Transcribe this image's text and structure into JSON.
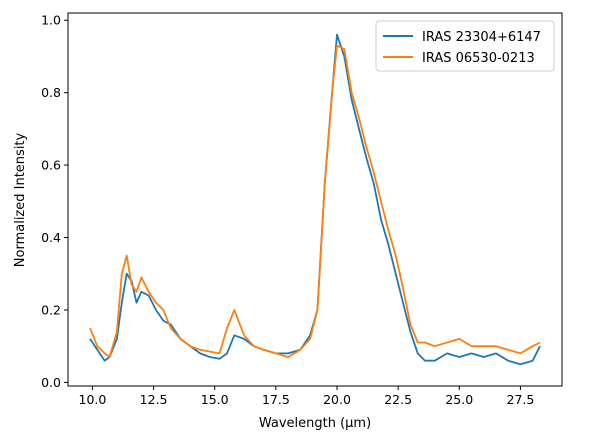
{
  "chart_data": {
    "type": "line",
    "title": "",
    "xlabel": "Wavelength (μm)",
    "ylabel": "Normalized Intensity",
    "xlim": [
      9.0,
      29.2
    ],
    "ylim": [
      -0.01,
      1.02
    ],
    "xticks": [
      "10.0",
      "12.5",
      "15.0",
      "17.5",
      "20.0",
      "22.5",
      "25.0",
      "27.5"
    ],
    "yticks": [
      "0.0",
      "0.2",
      "0.4",
      "0.6",
      "0.8",
      "1.0"
    ],
    "grid": false,
    "legend_position": "top-right",
    "series": [
      {
        "name": "IRAS 23304+6147",
        "color": "#1f77b4",
        "x": [
          9.9,
          10.2,
          10.5,
          10.7,
          11.0,
          11.2,
          11.4,
          11.6,
          11.8,
          12.0,
          12.3,
          12.6,
          12.9,
          13.2,
          13.6,
          14.0,
          14.4,
          14.8,
          15.2,
          15.5,
          15.8,
          16.2,
          16.6,
          17.0,
          17.5,
          18.0,
          18.5,
          18.9,
          19.2,
          19.5,
          19.8,
          20.0,
          20.3,
          20.6,
          20.9,
          21.2,
          21.5,
          21.8,
          22.1,
          22.4,
          22.7,
          23.0,
          23.3,
          23.6,
          24.0,
          24.5,
          25.0,
          25.5,
          26.0,
          26.5,
          27.0,
          27.5,
          28.0,
          28.3
        ],
        "values": [
          0.12,
          0.09,
          0.06,
          0.07,
          0.12,
          0.22,
          0.3,
          0.28,
          0.22,
          0.25,
          0.24,
          0.2,
          0.17,
          0.16,
          0.12,
          0.1,
          0.08,
          0.07,
          0.065,
          0.08,
          0.13,
          0.12,
          0.1,
          0.09,
          0.08,
          0.08,
          0.09,
          0.13,
          0.2,
          0.55,
          0.8,
          0.96,
          0.9,
          0.78,
          0.7,
          0.62,
          0.55,
          0.45,
          0.38,
          0.3,
          0.22,
          0.14,
          0.08,
          0.06,
          0.06,
          0.08,
          0.07,
          0.08,
          0.07,
          0.08,
          0.06,
          0.05,
          0.06,
          0.1
        ]
      },
      {
        "name": "IRAS 06530-0213",
        "color": "#ff7f0e",
        "x": [
          9.9,
          10.2,
          10.5,
          10.7,
          11.0,
          11.2,
          11.4,
          11.6,
          11.8,
          12.0,
          12.3,
          12.6,
          12.9,
          13.2,
          13.6,
          14.0,
          14.4,
          14.8,
          15.2,
          15.5,
          15.8,
          16.2,
          16.6,
          17.0,
          17.5,
          18.0,
          18.5,
          18.9,
          19.2,
          19.5,
          19.8,
          20.0,
          20.3,
          20.6,
          20.9,
          21.2,
          21.5,
          21.8,
          22.1,
          22.4,
          22.7,
          23.0,
          23.3,
          23.6,
          24.0,
          24.5,
          25.0,
          25.5,
          26.0,
          26.5,
          27.0,
          27.5,
          28.0,
          28.3
        ],
        "values": [
          0.15,
          0.1,
          0.08,
          0.07,
          0.14,
          0.3,
          0.35,
          0.27,
          0.25,
          0.29,
          0.25,
          0.22,
          0.2,
          0.15,
          0.12,
          0.1,
          0.09,
          0.085,
          0.08,
          0.15,
          0.2,
          0.13,
          0.1,
          0.09,
          0.08,
          0.07,
          0.09,
          0.12,
          0.2,
          0.55,
          0.8,
          0.93,
          0.92,
          0.8,
          0.73,
          0.65,
          0.58,
          0.5,
          0.42,
          0.35,
          0.26,
          0.16,
          0.11,
          0.11,
          0.1,
          0.11,
          0.12,
          0.1,
          0.1,
          0.1,
          0.09,
          0.08,
          0.1,
          0.11
        ]
      }
    ]
  }
}
